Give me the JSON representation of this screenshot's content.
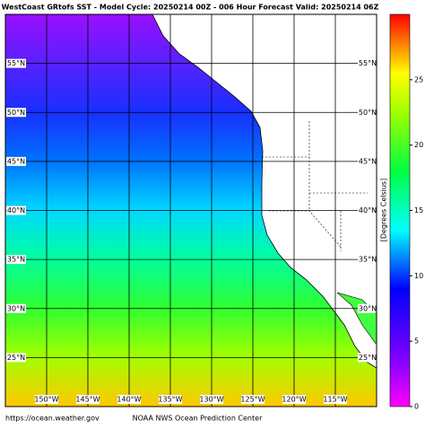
{
  "title": "WestCoast GRtofs SST - Model Cycle: 20250214 00Z - 006 Hour Forecast Valid: 20250214 06Z",
  "map": {
    "latlim": [
      20,
      60
    ],
    "lonlim": [
      -155,
      -110
    ],
    "latitudes": [
      {
        "value": 55,
        "label": "55°N"
      },
      {
        "value": 50,
        "label": "50°N"
      },
      {
        "value": 45,
        "label": "45°N"
      },
      {
        "value": 40,
        "label": "40°N"
      },
      {
        "value": 35,
        "label": "35°N"
      },
      {
        "value": 30,
        "label": "30°N"
      },
      {
        "value": 25,
        "label": "25°N"
      }
    ],
    "longitudes": [
      {
        "value": -150,
        "label": "150°W"
      },
      {
        "value": -145,
        "label": "145°W"
      },
      {
        "value": -140,
        "label": "140°W"
      },
      {
        "value": -135,
        "label": "135°W"
      },
      {
        "value": -130,
        "label": "130°W"
      },
      {
        "value": -125,
        "label": "125°W"
      },
      {
        "value": -120,
        "label": "120°W"
      },
      {
        "value": -115,
        "label": "115°W"
      }
    ]
  },
  "colorbar": {
    "label": "[Degrees Celsius]",
    "range": [
      0,
      30
    ],
    "ticks": [
      0,
      5,
      10,
      15,
      20,
      25
    ]
  },
  "footer": {
    "left": "https://ocean.weather.gov",
    "center": "NOAA NWS Ocean Prediction Center"
  }
}
